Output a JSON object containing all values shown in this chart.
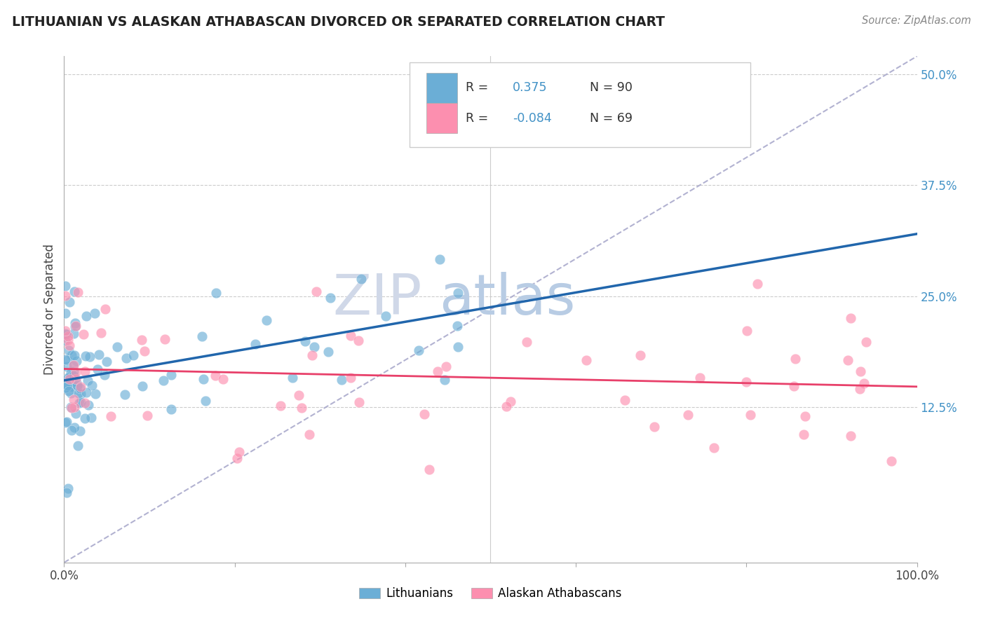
{
  "title": "LITHUANIAN VS ALASKAN ATHABASCAN DIVORCED OR SEPARATED CORRELATION CHART",
  "source_text": "Source: ZipAtlas.com",
  "ylabel": "Divorced or Separated",
  "color_blue": "#6baed6",
  "color_pink": "#fc8faf",
  "color_blue_line": "#2166ac",
  "color_pink_line": "#e8406a",
  "color_trend_dashed": "#aaaacc",
  "background_color": "#ffffff",
  "xlim": [
    0.0,
    1.0
  ],
  "ylim": [
    -0.05,
    0.52
  ],
  "yticks": [
    0.125,
    0.25,
    0.375,
    0.5
  ],
  "ytick_labels": [
    "12.5%",
    "25.0%",
    "37.5%",
    "50.0%"
  ],
  "blue_line_x0": 0.0,
  "blue_line_y0": 0.155,
  "blue_line_x1": 1.0,
  "blue_line_y1": 0.32,
  "pink_line_x0": 0.0,
  "pink_line_y0": 0.168,
  "pink_line_x1": 1.0,
  "pink_line_y1": 0.148,
  "dash_line_x0": 0.0,
  "dash_line_y0": -0.05,
  "dash_line_x1": 1.0,
  "dash_line_y1": 0.52,
  "legend_r1_text": "R =  0.375",
  "legend_n1_text": "N = 90",
  "legend_r2_text": "R = -0.084",
  "legend_n2_text": "N = 69",
  "watermark_zip": "ZIP",
  "watermark_atlas": "atlas"
}
